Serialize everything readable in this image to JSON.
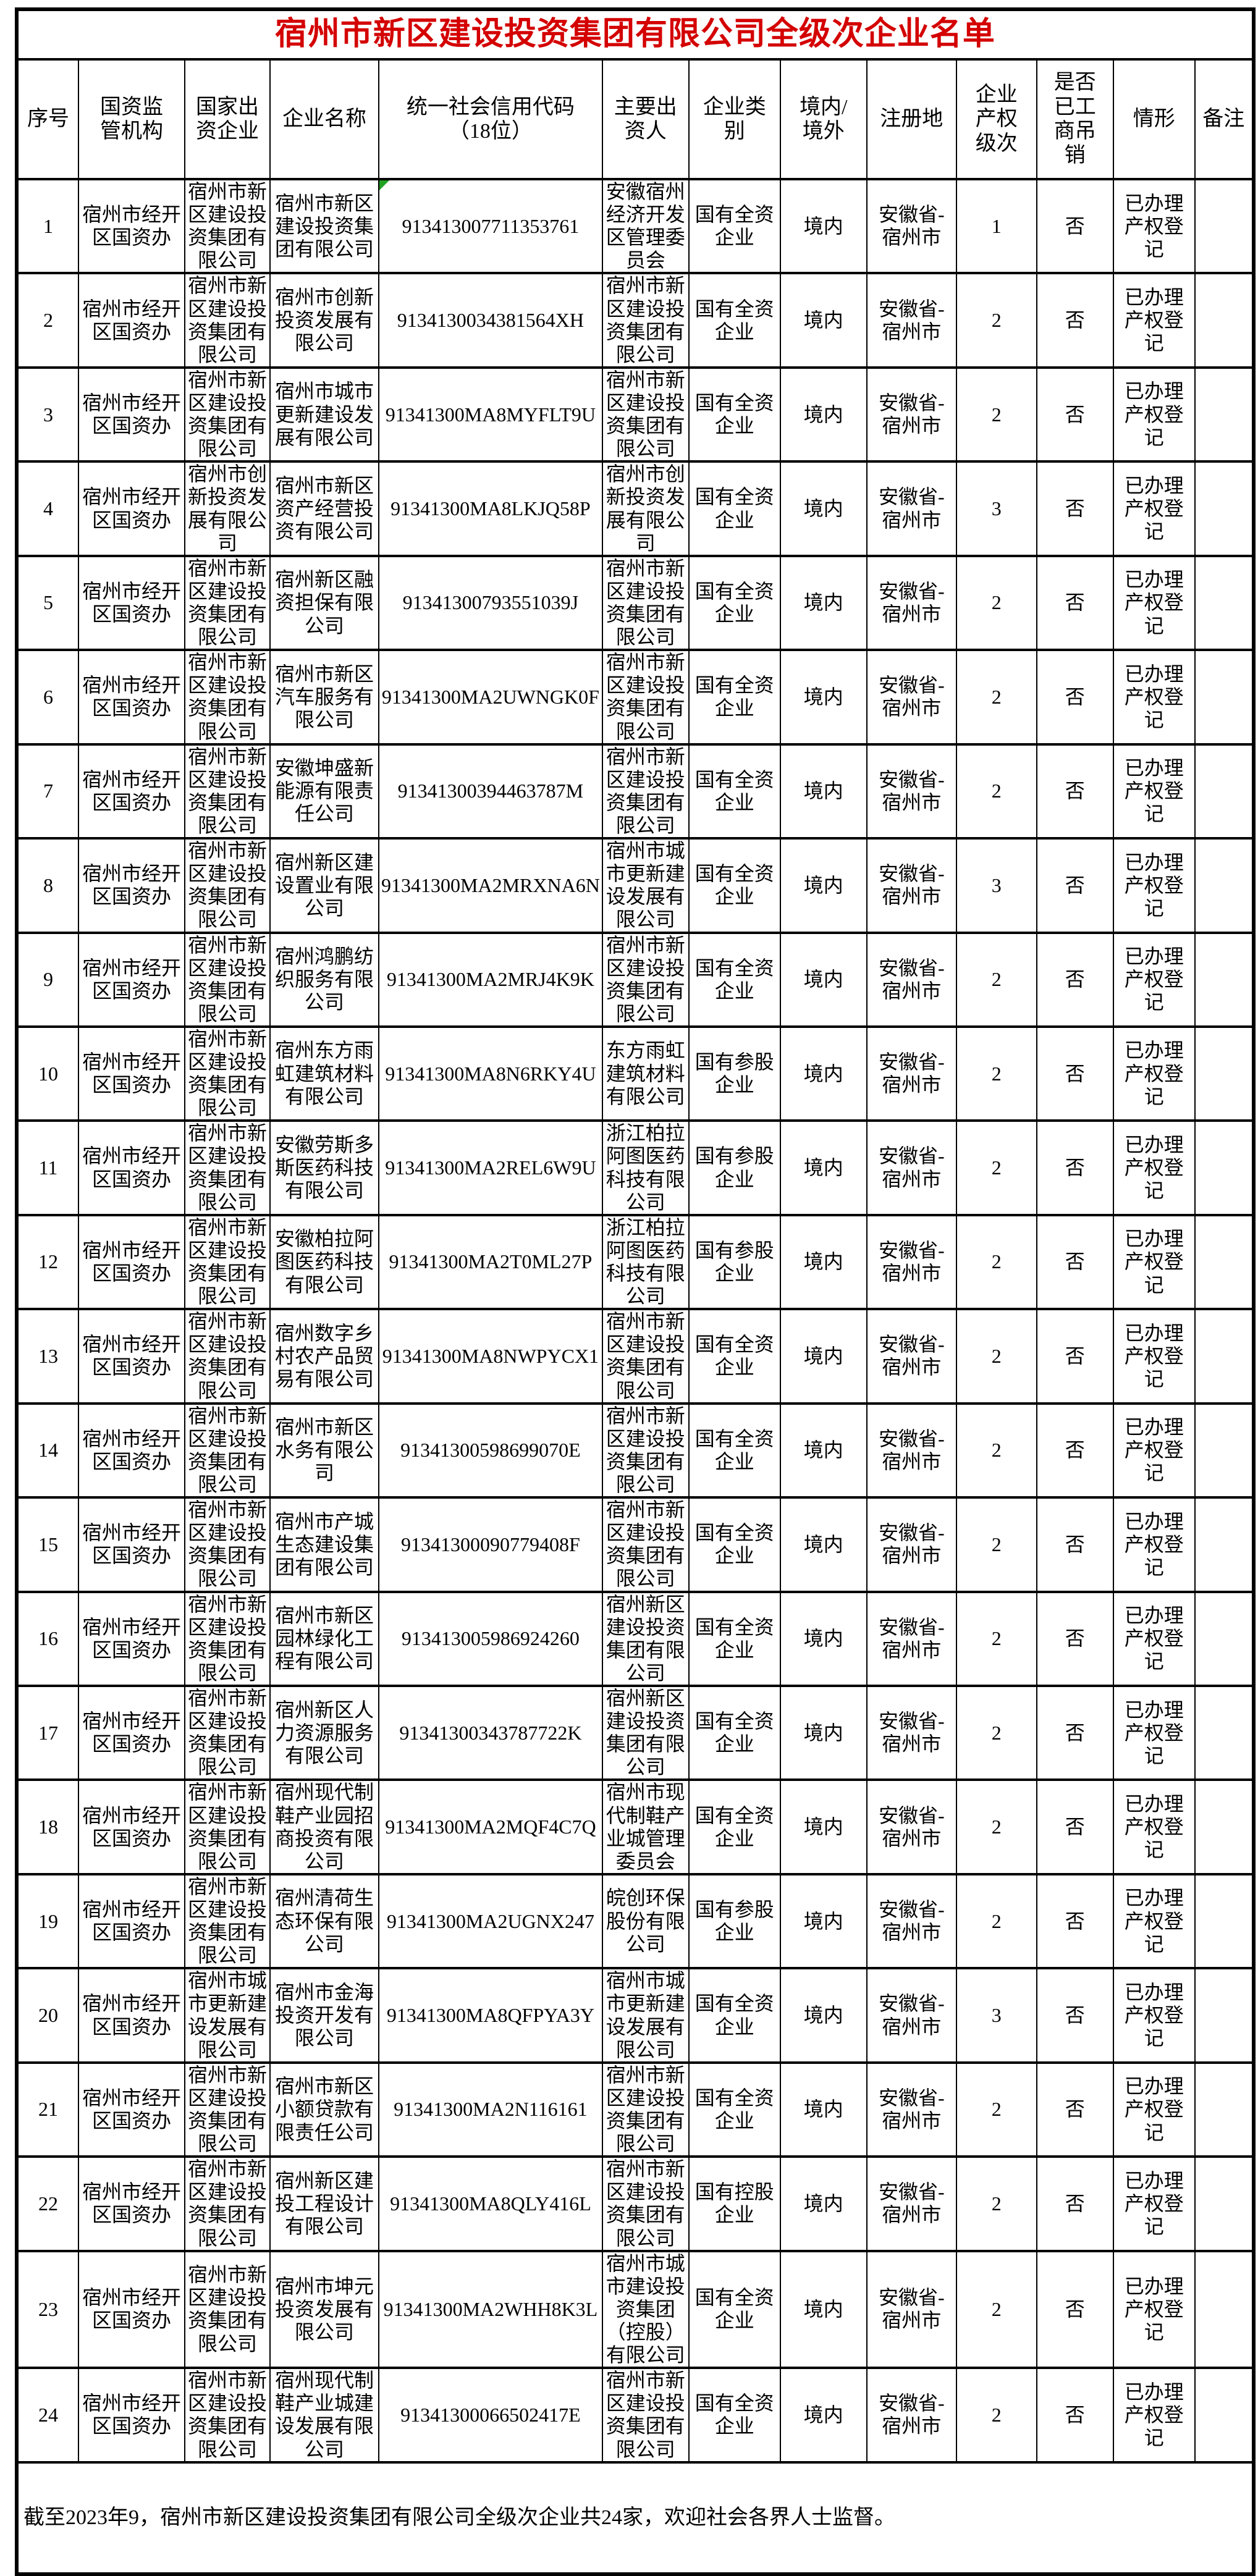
{
  "title": "宿州市新区建设投资集团有限公司全级次企业名单",
  "footer_note": "截至2023年9，宿州市新区建设投资集团有限公司全级次企业共24家，欢迎社会各界人士监督。",
  "colors": {
    "title_red": "#d40000",
    "error_indicator_green": "#21a121",
    "border_black": "#000000"
  },
  "columns": [
    {
      "key": "seq",
      "label": "序号"
    },
    {
      "key": "regulator",
      "label": "国资监\n管机构"
    },
    {
      "key": "state_funded_enterprise",
      "label": "国家出\n资企业"
    },
    {
      "key": "enterprise_name",
      "label": "企业名称"
    },
    {
      "key": "credit_code",
      "label": "统一社会信用代码\n（18位）"
    },
    {
      "key": "main_investor",
      "label": "主要出\n资人"
    },
    {
      "key": "category",
      "label": "企业类\n别"
    },
    {
      "key": "territory",
      "label": "境内/\n境外"
    },
    {
      "key": "registration_place",
      "label": "注册地"
    },
    {
      "key": "equity_level",
      "label": "企业\n产权\n级次"
    },
    {
      "key": "revoked",
      "label": "是否\n已工\n商吊\n销"
    },
    {
      "key": "status",
      "label": "情形"
    },
    {
      "key": "remarks",
      "label": "备注"
    }
  ],
  "rows": [
    {
      "seq": "1",
      "regulator": "宿州市经开区国资办",
      "state_funded_enterprise": "宿州市新区建设投资集团有限公司",
      "enterprise_name": "宿州市新区建设投资集团有限公司",
      "credit_code": "913413007711353761",
      "main_investor": "安徽宿州经济开发区管理委员会",
      "category": "国有全资企业",
      "territory": "境内",
      "registration_place": "安徽省-宿州市",
      "equity_level": "1",
      "revoked": "否",
      "status": "已办理产权登记",
      "remarks": "",
      "green_marker": true
    },
    {
      "seq": "2",
      "regulator": "宿州市经开区国资办",
      "state_funded_enterprise": "宿州市新区建设投资集团有限公司",
      "enterprise_name": "宿州市创新投资发展有限公司",
      "credit_code": "9134130034381564XH",
      "main_investor": "宿州市新区建设投资集团有限公司",
      "category": "国有全资企业",
      "territory": "境内",
      "registration_place": "安徽省-宿州市",
      "equity_level": "2",
      "revoked": "否",
      "status": "已办理产权登记",
      "remarks": "",
      "green_marker": false
    },
    {
      "seq": "3",
      "regulator": "宿州市经开区国资办",
      "state_funded_enterprise": "宿州市新区建设投资集团有限公司",
      "enterprise_name": "宿州市城市更新建设发展有限公司",
      "credit_code": "91341300MA8MYFLT9U",
      "main_investor": "宿州市新区建设投资集团有限公司",
      "category": "国有全资企业",
      "territory": "境内",
      "registration_place": "安徽省-宿州市",
      "equity_level": "2",
      "revoked": "否",
      "status": "已办理产权登记",
      "remarks": "",
      "green_marker": false
    },
    {
      "seq": "4",
      "regulator": "宿州市经开区国资办",
      "state_funded_enterprise": "宿州市创新投资发展有限公司",
      "enterprise_name": "宿州市新区资产经营投资有限公司",
      "credit_code": "91341300MA8LKJQ58P",
      "main_investor": "宿州市创新投资发展有限公司",
      "category": "国有全资企业",
      "territory": "境内",
      "registration_place": "安徽省-宿州市",
      "equity_level": "3",
      "revoked": "否",
      "status": "已办理产权登记",
      "remarks": "",
      "green_marker": false
    },
    {
      "seq": "5",
      "regulator": "宿州市经开区国资办",
      "state_funded_enterprise": "宿州市新区建设投资集团有限公司",
      "enterprise_name": "宿州新区融资担保有限公司",
      "credit_code": "91341300793551039J",
      "main_investor": "宿州市新区建设投资集团有限公司",
      "category": "国有全资企业",
      "territory": "境内",
      "registration_place": "安徽省-宿州市",
      "equity_level": "2",
      "revoked": "否",
      "status": "已办理产权登记",
      "remarks": "",
      "green_marker": false
    },
    {
      "seq": "6",
      "regulator": "宿州市经开区国资办",
      "state_funded_enterprise": "宿州市新区建设投资集团有限公司",
      "enterprise_name": "宿州市新区汽车服务有限公司",
      "credit_code": "91341300MA2UWNGK0F",
      "main_investor": "宿州市新区建设投资集团有限公司",
      "category": "国有全资企业",
      "territory": "境内",
      "registration_place": "安徽省-宿州市",
      "equity_level": "2",
      "revoked": "否",
      "status": "已办理产权登记",
      "remarks": "",
      "green_marker": false
    },
    {
      "seq": "7",
      "regulator": "宿州市经开区国资办",
      "state_funded_enterprise": "宿州市新区建设投资集团有限公司",
      "enterprise_name": "安徽坤盛新能源有限责任公司",
      "credit_code": "91341300394463787M",
      "main_investor": "宿州市新区建设投资集团有限公司",
      "category": "国有全资企业",
      "territory": "境内",
      "registration_place": "安徽省-宿州市",
      "equity_level": "2",
      "revoked": "否",
      "status": "已办理产权登记",
      "remarks": "",
      "green_marker": false
    },
    {
      "seq": "8",
      "regulator": "宿州市经开区国资办",
      "state_funded_enterprise": "宿州市新区建设投资集团有限公司",
      "enterprise_name": "宿州新区建设置业有限公司",
      "credit_code": "91341300MA2MRXNA6N",
      "main_investor": "宿州市城市更新建设发展有限公司",
      "category": "国有全资企业",
      "territory": "境内",
      "registration_place": "安徽省-宿州市",
      "equity_level": "3",
      "revoked": "否",
      "status": "已办理产权登记",
      "remarks": "",
      "green_marker": false
    },
    {
      "seq": "9",
      "regulator": "宿州市经开区国资办",
      "state_funded_enterprise": "宿州市新区建设投资集团有限公司",
      "enterprise_name": "宿州鸿鹏纺织服务有限公司",
      "credit_code": "91341300MA2MRJ4K9K",
      "main_investor": "宿州市新区建设投资集团有限公司",
      "category": "国有全资企业",
      "territory": "境内",
      "registration_place": "安徽省-宿州市",
      "equity_level": "2",
      "revoked": "否",
      "status": "已办理产权登记",
      "remarks": "",
      "green_marker": false
    },
    {
      "seq": "10",
      "regulator": "宿州市经开区国资办",
      "state_funded_enterprise": "宿州市新区建设投资集团有限公司",
      "enterprise_name": "宿州东方雨虹建筑材料有限公司",
      "credit_code": "91341300MA8N6RKY4U",
      "main_investor": "东方雨虹建筑材料有限公司",
      "category": "国有参股企业",
      "territory": "境内",
      "registration_place": "安徽省-宿州市",
      "equity_level": "2",
      "revoked": "否",
      "status": "已办理产权登记",
      "remarks": "",
      "green_marker": false
    },
    {
      "seq": "11",
      "regulator": "宿州市经开区国资办",
      "state_funded_enterprise": "宿州市新区建设投资集团有限公司",
      "enterprise_name": "安徽劳斯多斯医药科技有限公司",
      "credit_code": "91341300MA2REL6W9U",
      "main_investor": "浙江柏拉阿图医药科技有限公司",
      "category": "国有参股企业",
      "territory": "境内",
      "registration_place": "安徽省-宿州市",
      "equity_level": "2",
      "revoked": "否",
      "status": "已办理产权登记",
      "remarks": "",
      "green_marker": false
    },
    {
      "seq": "12",
      "regulator": "宿州市经开区国资办",
      "state_funded_enterprise": "宿州市新区建设投资集团有限公司",
      "enterprise_name": "安徽柏拉阿图医药科技有限公司",
      "credit_code": "91341300MA2T0ML27P",
      "main_investor": "浙江柏拉阿图医药科技有限公司",
      "category": "国有参股企业",
      "territory": "境内",
      "registration_place": "安徽省-宿州市",
      "equity_level": "2",
      "revoked": "否",
      "status": "已办理产权登记",
      "remarks": "",
      "green_marker": false
    },
    {
      "seq": "13",
      "regulator": "宿州市经开区国资办",
      "state_funded_enterprise": "宿州市新区建设投资集团有限公司",
      "enterprise_name": "宿州数字乡村农产品贸易有限公司",
      "credit_code": "91341300MA8NWPYCX1",
      "main_investor": "宿州市新区建设投资集团有限公司",
      "category": "国有全资企业",
      "territory": "境内",
      "registration_place": "安徽省-宿州市",
      "equity_level": "2",
      "revoked": "否",
      "status": "已办理产权登记",
      "remarks": "",
      "green_marker": false
    },
    {
      "seq": "14",
      "regulator": "宿州市经开区国资办",
      "state_funded_enterprise": "宿州市新区建设投资集团有限公司",
      "enterprise_name": "宿州市新区水务有限公司",
      "credit_code": "91341300598699070E",
      "main_investor": "宿州市新区建设投资集团有限公司",
      "category": "国有全资企业",
      "territory": "境内",
      "registration_place": "安徽省-宿州市",
      "equity_level": "2",
      "revoked": "否",
      "status": "已办理产权登记",
      "remarks": "",
      "green_marker": false
    },
    {
      "seq": "15",
      "regulator": "宿州市经开区国资办",
      "state_funded_enterprise": "宿州市新区建设投资集团有限公司",
      "enterprise_name": "宿州市产城生态建设集团有限公司",
      "credit_code": "91341300090779408F",
      "main_investor": "宿州市新区建设投资集团有限公司",
      "category": "国有全资企业",
      "territory": "境内",
      "registration_place": "安徽省-宿州市",
      "equity_level": "2",
      "revoked": "否",
      "status": "已办理产权登记",
      "remarks": "",
      "green_marker": false
    },
    {
      "seq": "16",
      "regulator": "宿州市经开区国资办",
      "state_funded_enterprise": "宿州市新区建设投资集团有限公司",
      "enterprise_name": "宿州市新区园林绿化工程有限公司",
      "credit_code": "913413005986924260",
      "main_investor": "宿州新区建设投资集团有限公司",
      "category": "国有全资企业",
      "territory": "境内",
      "registration_place": "安徽省-宿州市",
      "equity_level": "2",
      "revoked": "否",
      "status": "已办理产权登记",
      "remarks": "",
      "green_marker": false
    },
    {
      "seq": "17",
      "regulator": "宿州市经开区国资办",
      "state_funded_enterprise": "宿州市新区建设投资集团有限公司",
      "enterprise_name": "宿州新区人力资源服务有限公司",
      "credit_code": "91341300343787722K",
      "main_investor": "宿州新区建设投资集团有限公司",
      "category": "国有全资企业",
      "territory": "境内",
      "registration_place": "安徽省-宿州市",
      "equity_level": "2",
      "revoked": "否",
      "status": "已办理产权登记",
      "remarks": "",
      "green_marker": false
    },
    {
      "seq": "18",
      "regulator": "宿州市经开区国资办",
      "state_funded_enterprise": "宿州市新区建设投资集团有限公司",
      "enterprise_name": "宿州现代制鞋产业园招商投资有限公司",
      "credit_code": "91341300MA2MQF4C7Q",
      "main_investor": "宿州市现代制鞋产业城管理委员会",
      "category": "国有全资企业",
      "territory": "境内",
      "registration_place": "安徽省-宿州市",
      "equity_level": "2",
      "revoked": "否",
      "status": "已办理产权登记",
      "remarks": "",
      "green_marker": false
    },
    {
      "seq": "19",
      "regulator": "宿州市经开区国资办",
      "state_funded_enterprise": "宿州市新区建设投资集团有限公司",
      "enterprise_name": "宿州清荷生态环保有限公司",
      "credit_code": "91341300MA2UGNX247",
      "main_investor": "皖创环保股份有限公司",
      "category": "国有参股企业",
      "territory": "境内",
      "registration_place": "安徽省-宿州市",
      "equity_level": "2",
      "revoked": "否",
      "status": "已办理产权登记",
      "remarks": "",
      "green_marker": false
    },
    {
      "seq": "20",
      "regulator": "宿州市经开区国资办",
      "state_funded_enterprise": "宿州市城市更新建设发展有限公司",
      "enterprise_name": "宿州市金海投资开发有限公司",
      "credit_code": "91341300MA8QFPYA3Y",
      "main_investor": "宿州市城市更新建设发展有限公司",
      "category": "国有全资企业",
      "territory": "境内",
      "registration_place": "安徽省-宿州市",
      "equity_level": "3",
      "revoked": "否",
      "status": "已办理产权登记",
      "remarks": "",
      "green_marker": false
    },
    {
      "seq": "21",
      "regulator": "宿州市经开区国资办",
      "state_funded_enterprise": "宿州市新区建设投资集团有限公司",
      "enterprise_name": "宿州市新区小额贷款有限责任公司",
      "credit_code": "91341300MA2N116161",
      "main_investor": "宿州市新区建设投资集团有限公司",
      "category": "国有全资企业",
      "territory": "境内",
      "registration_place": "安徽省-宿州市",
      "equity_level": "2",
      "revoked": "否",
      "status": "已办理产权登记",
      "remarks": "",
      "green_marker": false
    },
    {
      "seq": "22",
      "regulator": "宿州市经开区国资办",
      "state_funded_enterprise": "宿州市新区建设投资集团有限公司",
      "enterprise_name": "宿州新区建投工程设计有限公司",
      "credit_code": "91341300MA8QLY416L",
      "main_investor": "宿州市新区建设投资集团有限公司",
      "category": "国有控股企业",
      "territory": "境内",
      "registration_place": "安徽省-宿州市",
      "equity_level": "2",
      "revoked": "否",
      "status": "已办理产权登记",
      "remarks": "",
      "green_marker": false
    },
    {
      "seq": "23",
      "regulator": "宿州市经开区国资办",
      "state_funded_enterprise": "宿州市新区建设投资集团有限公司",
      "enterprise_name": "宿州市坤元投资发展有限公司",
      "credit_code": "91341300MA2WHH8K3L",
      "main_investor": "宿州市城市建设投资集团（控股）有限公司",
      "category": "国有全资企业",
      "territory": "境内",
      "registration_place": "安徽省-宿州市",
      "equity_level": "2",
      "revoked": "否",
      "status": "已办理产权登记",
      "remarks": "",
      "green_marker": false
    },
    {
      "seq": "24",
      "regulator": "宿州市经开区国资办",
      "state_funded_enterprise": "宿州市新区建设投资集团有限公司",
      "enterprise_name": "宿州现代制鞋产业城建设发展有限公司",
      "credit_code": "91341300066502417E",
      "main_investor": "宿州市新区建设投资集团有限公司",
      "category": "国有全资企业",
      "territory": "境内",
      "registration_place": "安徽省-宿州市",
      "equity_level": "2",
      "revoked": "否",
      "status": "已办理产权登记",
      "remarks": "",
      "green_marker": false
    }
  ]
}
